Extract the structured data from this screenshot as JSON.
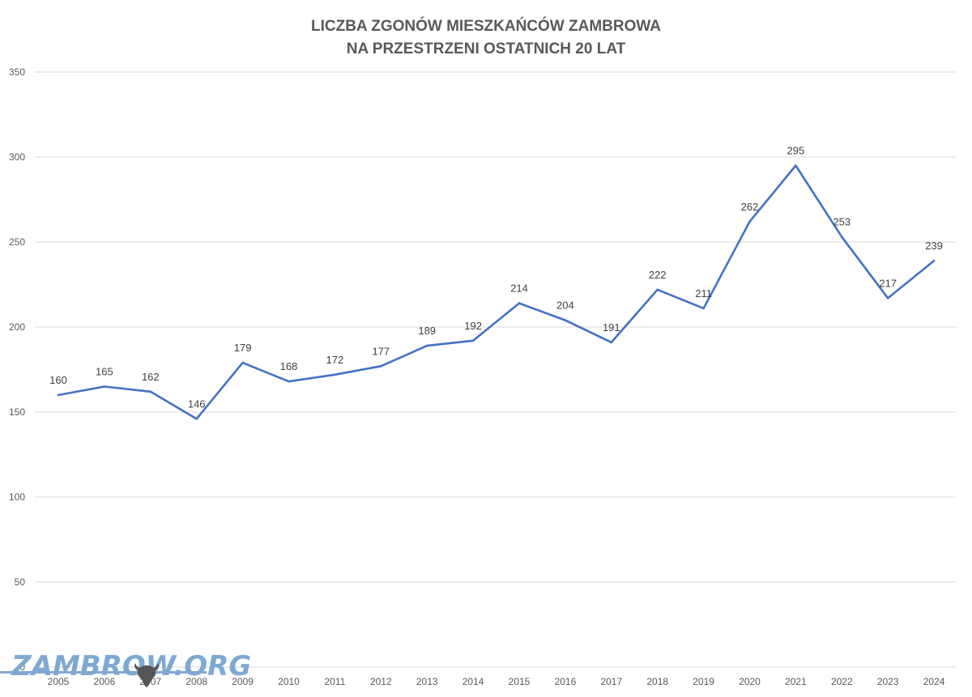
{
  "chart_data": {
    "type": "line",
    "title": [
      "LICZBA ZGONÓW MIESZKAŃCÓW ZAMBROWA",
      "NA PRZESTRZENI OSTATNICH 20 LAT"
    ],
    "xlabel": "",
    "ylabel": "",
    "categories": [
      "2005",
      "2006",
      "2007",
      "2008",
      "2009",
      "2010",
      "2011",
      "2012",
      "2013",
      "2014",
      "2015",
      "2016",
      "2017",
      "2018",
      "2019",
      "2020",
      "2021",
      "2022",
      "2023",
      "2024"
    ],
    "series": [
      {
        "values": [
          160,
          165,
          162,
          146,
          179,
          168,
          172,
          177,
          189,
          192,
          214,
          204,
          191,
          222,
          211,
          262,
          295,
          253,
          217,
          239
        ]
      }
    ],
    "ylim": [
      0,
      350
    ],
    "yticks": [
      0,
      50,
      100,
      150,
      200,
      250,
      300,
      350
    ],
    "grid": true,
    "legend": "none",
    "data_labels": true,
    "colors": {
      "line": "#4472c4",
      "grid": "#d9d9d9"
    }
  },
  "watermark": {
    "text": "ZAMBROW.ORG",
    "color": "#7fa9d3",
    "icon": "bison-head-icon"
  }
}
